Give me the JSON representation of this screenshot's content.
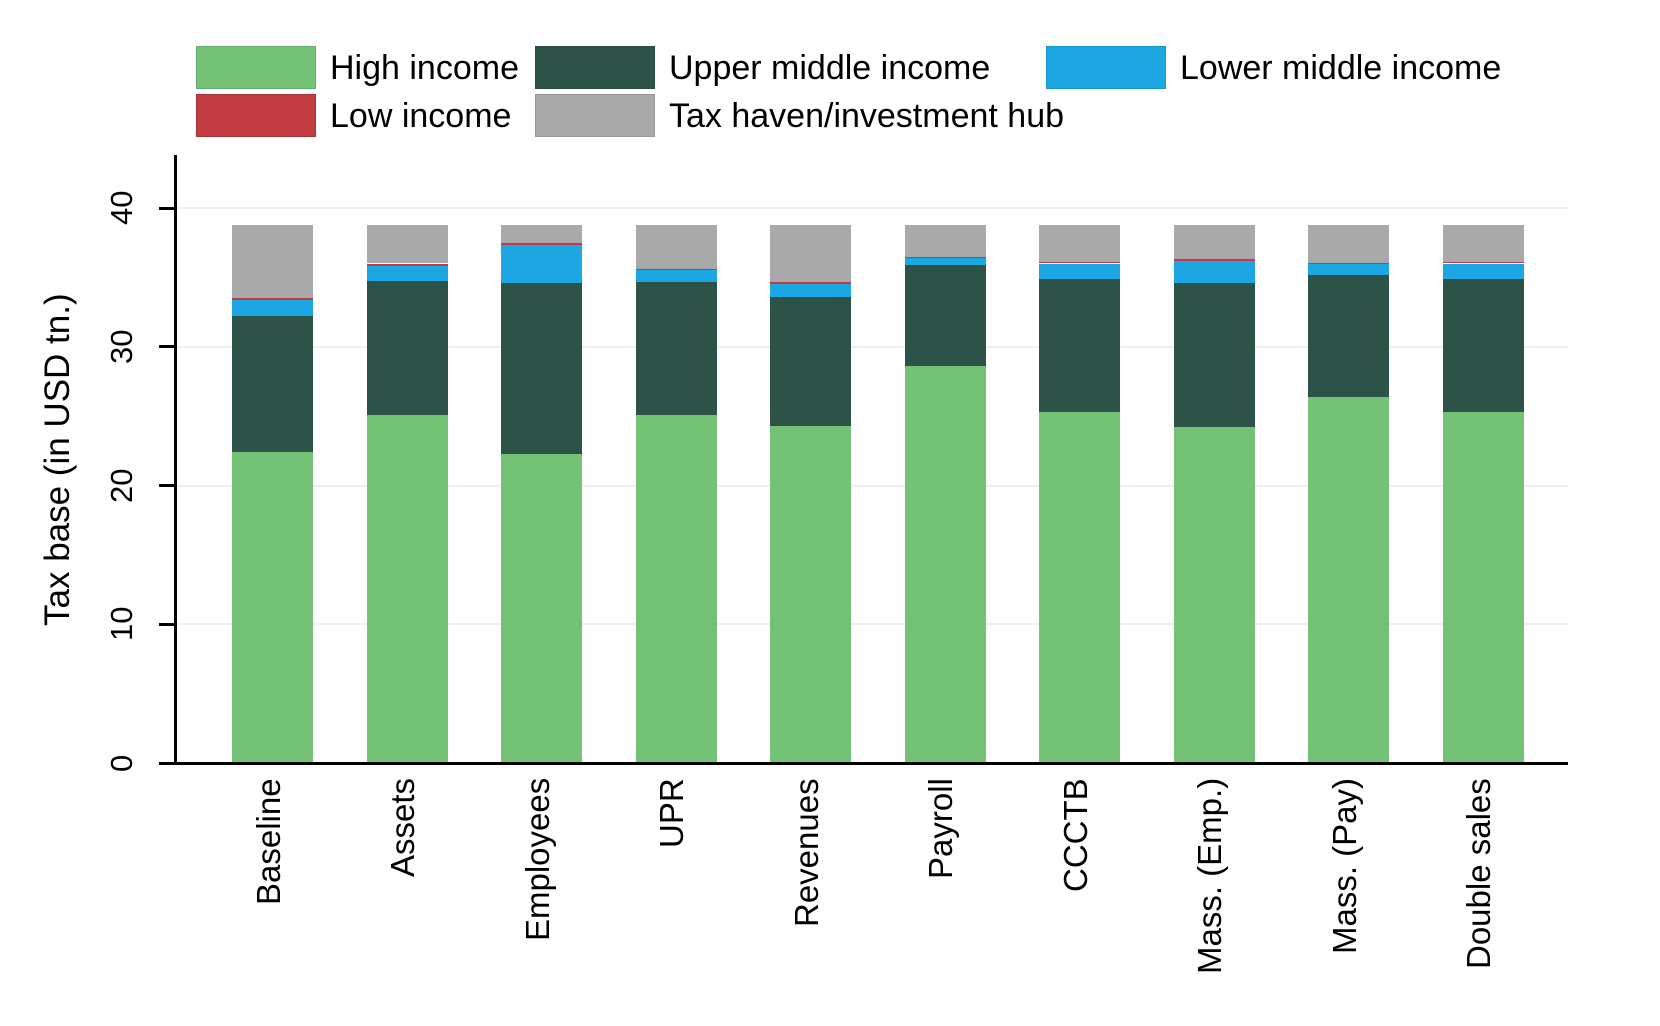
{
  "chart_data": {
    "type": "bar",
    "stacked": true,
    "title": "",
    "ylabel": "Tax base (in USD tn.)",
    "xlabel": "",
    "yticks": [
      0,
      10,
      20,
      30,
      40
    ],
    "ylim": [
      0,
      43.8
    ],
    "grid": true,
    "grid_color": "#efefef",
    "axis_color": "#000000",
    "background_color": "#ffffff",
    "legend_position": "top",
    "bar_total": 38.8,
    "categories": [
      "Baseline",
      "Assets",
      "Employees",
      "UPR",
      "Revenues",
      "Payroll",
      "CCCTB",
      "Mass. (Emp.)",
      "Mass. (Pay)",
      "Double sales"
    ],
    "series": [
      {
        "name": "High income",
        "color": "#74c276",
        "values": [
          22.4,
          25.1,
          22.3,
          25.1,
          24.3,
          28.6,
          25.3,
          24.2,
          26.4,
          25.3
        ]
      },
      {
        "name": "Upper middle income",
        "color": "#2d5247",
        "values": [
          9.8,
          9.65,
          12.3,
          9.6,
          9.3,
          7.3,
          9.6,
          10.4,
          8.8,
          9.55
        ]
      },
      {
        "name": "Lower middle income",
        "color": "#1ca6e2",
        "values": [
          1.15,
          1.1,
          2.7,
          0.8,
          0.9,
          0.5,
          1.1,
          1.6,
          0.75,
          1.15
        ]
      },
      {
        "name": "Low income",
        "color": "#c13b40",
        "values": [
          0.15,
          0.15,
          0.15,
          0.1,
          0.15,
          0.05,
          0.1,
          0.15,
          0.1,
          0.1
        ]
      },
      {
        "name": "Tax haven/investment hub",
        "color": "#a9a9a9",
        "values": [
          5.3,
          2.8,
          1.35,
          3.2,
          4.15,
          2.35,
          2.7,
          2.45,
          2.75,
          2.7
        ]
      }
    ]
  },
  "legend": {
    "items": [
      "High income",
      "Upper middle income",
      "Lower middle income",
      "Low income",
      "Tax haven/investment hub"
    ]
  }
}
